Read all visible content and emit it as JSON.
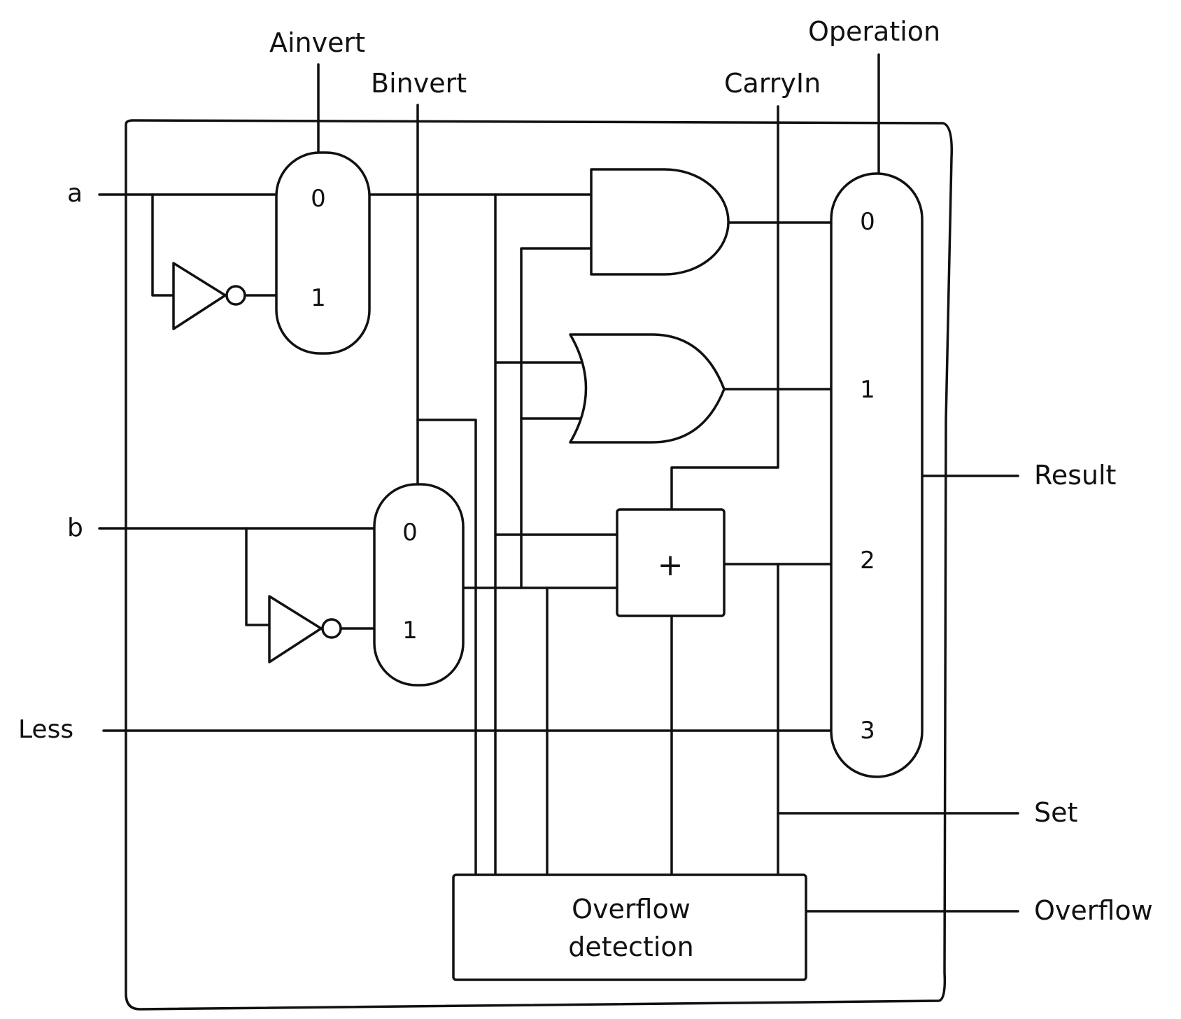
{
  "inputs": {
    "a": "a",
    "b": "b",
    "less": "Less"
  },
  "controls": {
    "ainvert": "Ainvert",
    "binvert": "Binvert",
    "carry_in": "CarryIn",
    "operation": "Operation"
  },
  "outputs": {
    "result": "Result",
    "set": "Set",
    "overflow": "Overflow"
  },
  "mux_a": {
    "in0": "0",
    "in1": "1"
  },
  "mux_b": {
    "in0": "0",
    "in1": "1"
  },
  "mux_result": {
    "in0": "0",
    "in1": "1",
    "in2": "2",
    "in3": "3"
  },
  "adder": {
    "symbol": "+"
  },
  "overflow_block": {
    "line1": "Overflow",
    "line2": "detection"
  }
}
